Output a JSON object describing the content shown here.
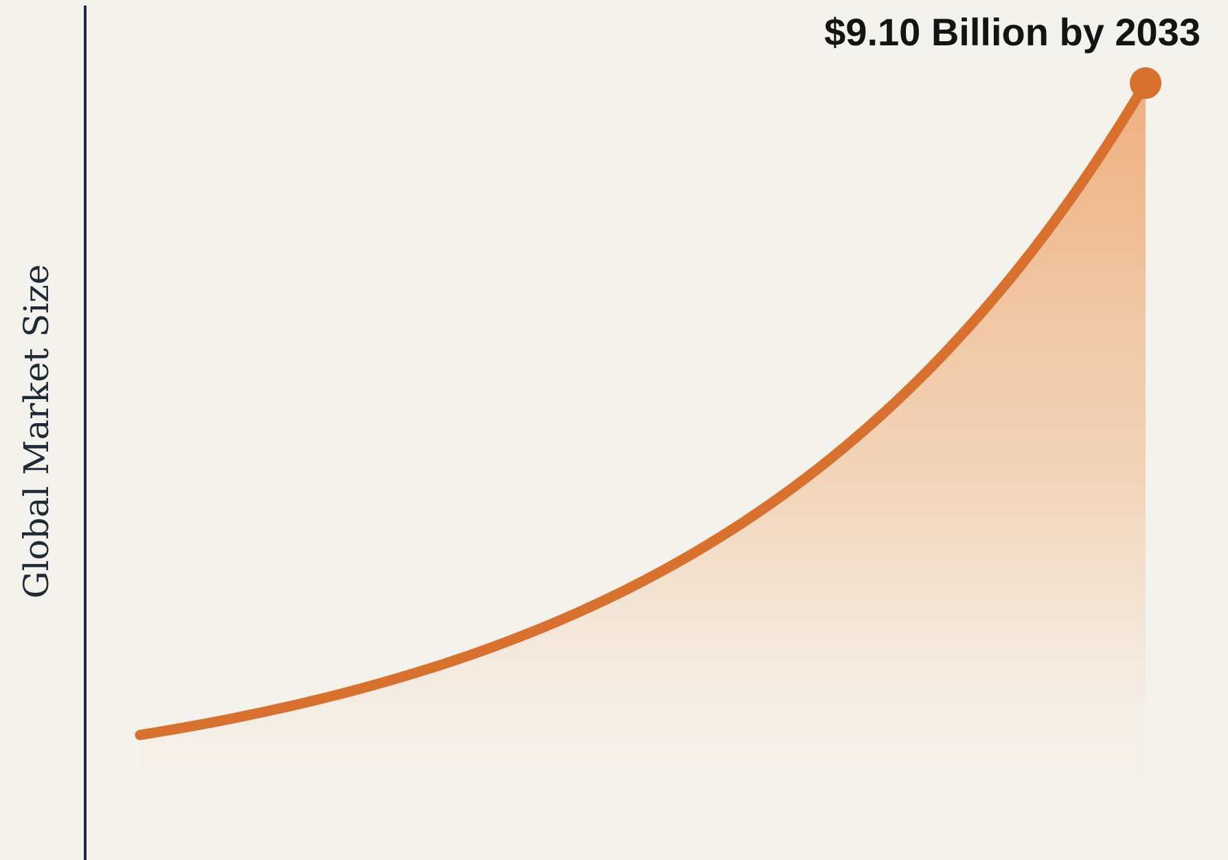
{
  "chart_data": {
    "type": "area",
    "ylabel": "Global Market Size",
    "annotation": "$9.10 Billion by 2033",
    "colors": {
      "line": "#d8712e",
      "fill": "#eeab78",
      "axis": "#1c2d44",
      "background": "#f4f2ec"
    },
    "grid": false,
    "legend": "none"
  }
}
